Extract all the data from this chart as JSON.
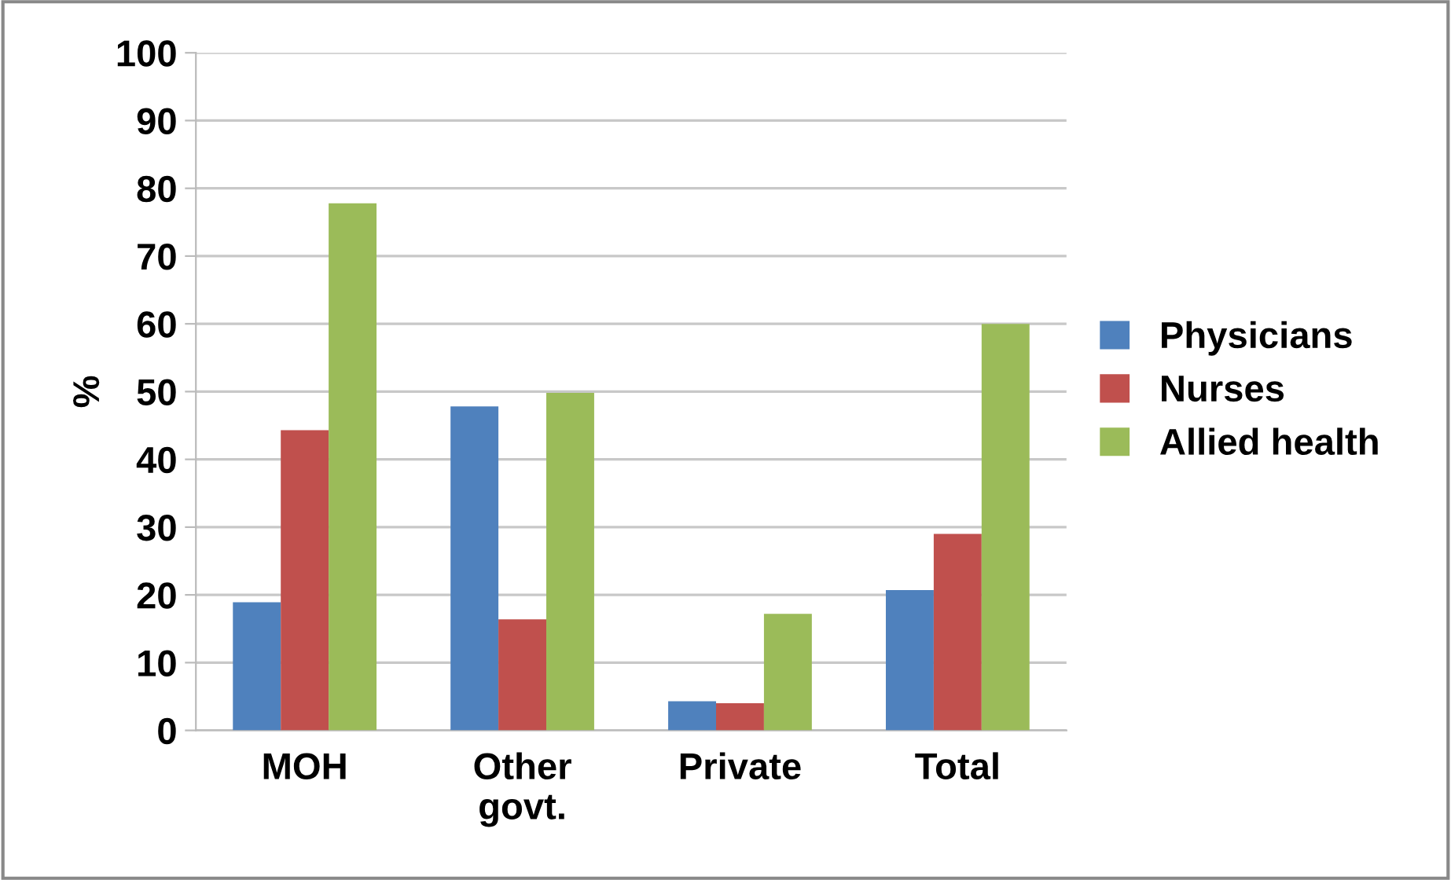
{
  "chart_data": {
    "type": "bar",
    "ylabel": "%",
    "categories": [
      "MOH",
      "Other\ngovt.",
      "Private",
      "Total"
    ],
    "series": [
      {
        "name": "Physicians",
        "color": "#4f81bd",
        "values": [
          18.9,
          47.8,
          4.3,
          20.7
        ]
      },
      {
        "name": "Nurses",
        "color": "#c0504d",
        "values": [
          44.3,
          16.4,
          4.0,
          29.0
        ]
      },
      {
        "name": "Allied health",
        "color": "#9bbb59",
        "values": [
          77.8,
          49.8,
          17.2,
          60.0
        ]
      }
    ],
    "ylim": [
      0,
      100
    ],
    "yticks": [
      0,
      10,
      20,
      30,
      40,
      50,
      60,
      70,
      80,
      90,
      100
    ],
    "grid": "y",
    "legend": "right"
  }
}
